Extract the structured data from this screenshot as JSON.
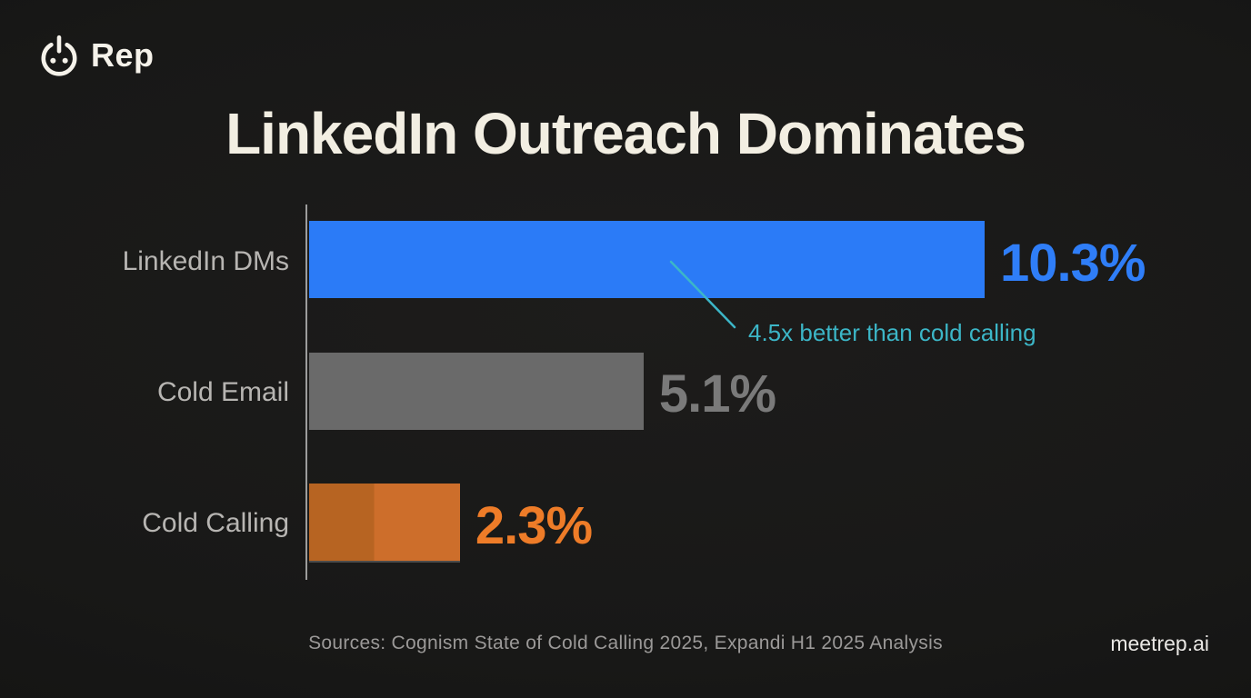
{
  "brand": {
    "logo_text": "Rep",
    "logo_icon": "power-smiley-icon",
    "logo_color": "#f5f2ea"
  },
  "title": "LinkedIn Outreach Dominates",
  "chart_data": {
    "type": "bar",
    "orientation": "horizontal",
    "title": "LinkedIn Outreach Dominates",
    "categories": [
      "LinkedIn DMs",
      "Cold Email",
      "Cold Calling"
    ],
    "values": [
      10.3,
      5.1,
      2.3
    ],
    "value_labels": [
      "10.3%",
      "5.1%",
      "2.3%"
    ],
    "unit": "%",
    "xlim": [
      0,
      10.3
    ],
    "grid": "off",
    "axis_style": "single left vertical baseline, no ticks",
    "bar_colors": [
      "#2b7bf7",
      "#6a6a6a",
      "#cd6e2b"
    ],
    "two_tone_bar": {
      "category": "Cold Calling",
      "left_shade": "#b76422",
      "right_shade": "#cd6e2b",
      "split_fraction": 0.43
    },
    "value_label_colors": [
      "#2f7ef8",
      "#7a7a7a",
      "#ee7c28"
    ],
    "annotation": {
      "text": "4.5x better than cold calling",
      "color": "#3cb6c7",
      "target_category": "LinkedIn DMs"
    }
  },
  "footer": {
    "sources": "Sources: Cognism State of Cold Calling 2025, Expandi H1 2025 Analysis",
    "site": "meetrep.ai"
  }
}
